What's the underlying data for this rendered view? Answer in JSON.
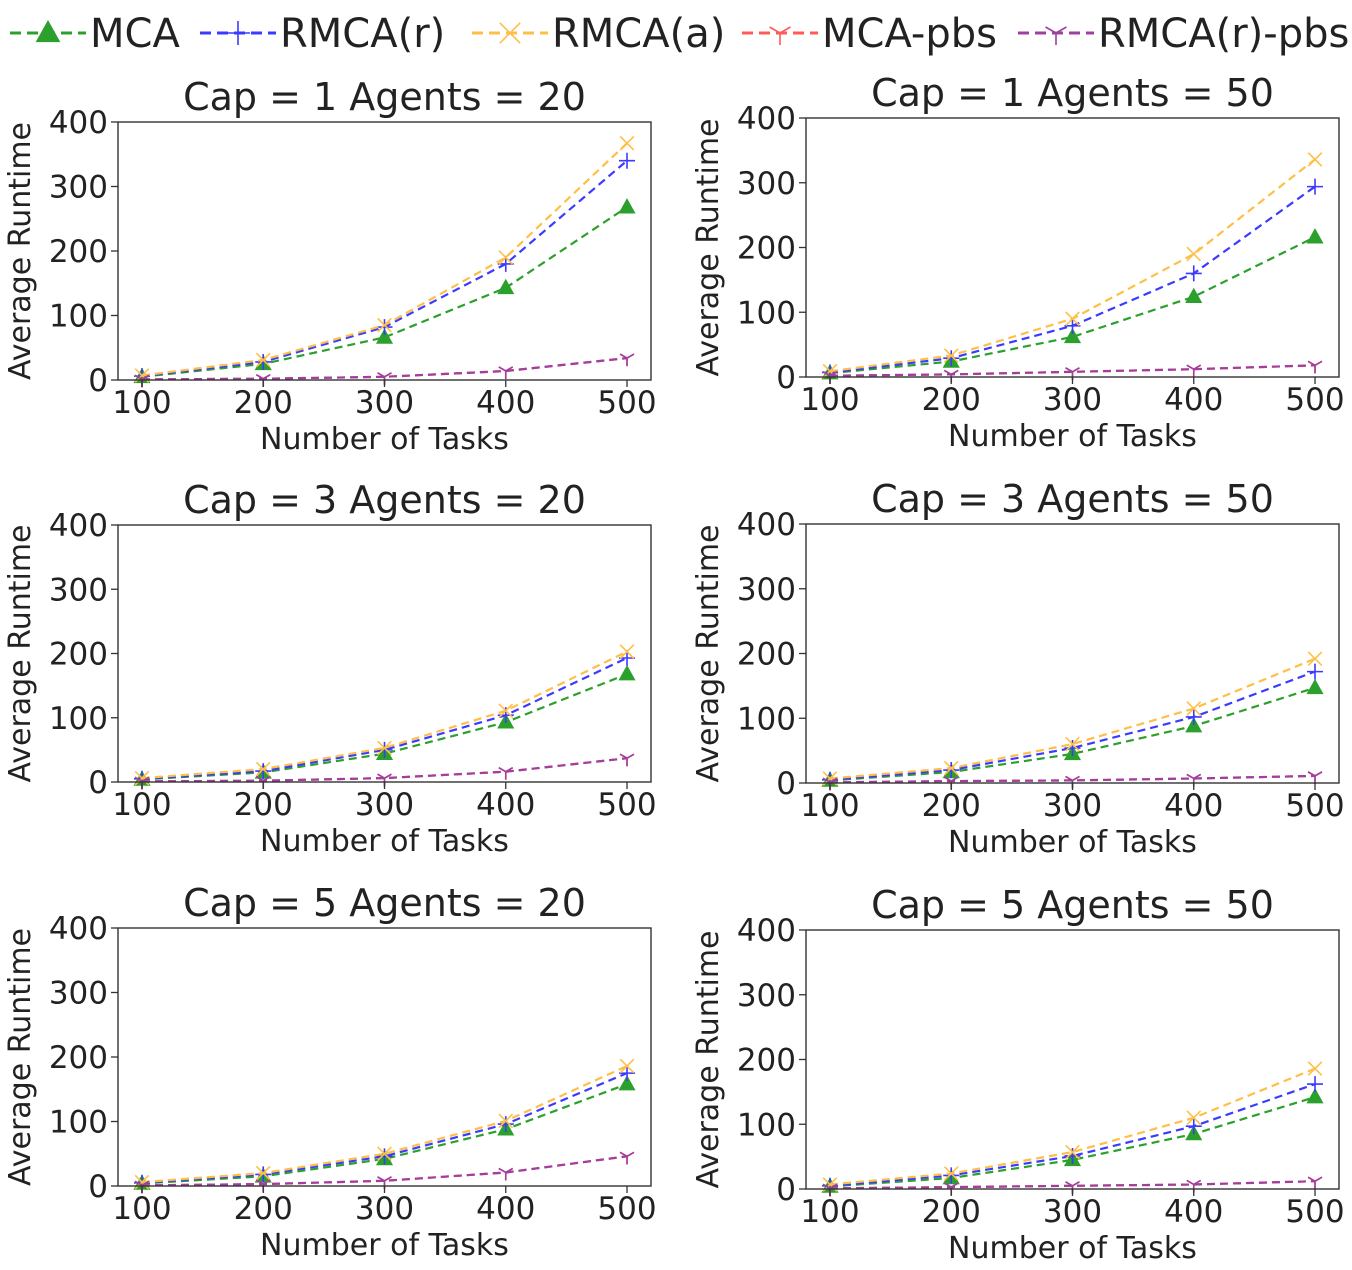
{
  "legend": {
    "placement": "top",
    "items": [
      {
        "label": "MCA",
        "color": "#2ca02c",
        "marker": "triangle"
      },
      {
        "label": "RMCA(r)",
        "color": "#3b3bff",
        "marker": "plus"
      },
      {
        "label": "RMCA(a)",
        "color": "#ffbf47",
        "marker": "x"
      },
      {
        "label": "MCA-pbs",
        "color": "#ff5a5a",
        "marker": "tri"
      },
      {
        "label": "RMCA(r)-pbs",
        "color": "#a03fa0",
        "marker": "tri"
      }
    ]
  },
  "chart_data": [
    {
      "type": "line",
      "title": "Cap = 1 Agents = 20",
      "xlabel": "Number of Tasks",
      "ylabel": "Average Runtime",
      "x": [
        100,
        200,
        300,
        400,
        500
      ],
      "ylim": [
        0,
        400
      ],
      "yticks": [
        0,
        100,
        200,
        300,
        400
      ],
      "grid": false,
      "series": [
        {
          "name": "MCA",
          "values": [
            5,
            25,
            66,
            143,
            268
          ]
        },
        {
          "name": "RMCA(r)",
          "values": [
            6,
            28,
            82,
            180,
            340
          ]
        },
        {
          "name": "RMCA(a)",
          "values": [
            7,
            31,
            85,
            190,
            367
          ]
        },
        {
          "name": "MCA-pbs",
          "values": [
            1,
            2,
            5,
            14,
            34
          ]
        },
        {
          "name": "RMCA(r)-pbs",
          "values": [
            1,
            2,
            5,
            14,
            34
          ]
        }
      ]
    },
    {
      "type": "line",
      "title": "Cap = 1 Agents = 50",
      "xlabel": "Number of Tasks",
      "ylabel": "Average Runtime",
      "x": [
        100,
        200,
        300,
        400,
        500
      ],
      "ylim": [
        0,
        400
      ],
      "yticks": [
        0,
        100,
        200,
        300,
        400
      ],
      "grid": false,
      "series": [
        {
          "name": "MCA",
          "values": [
            6,
            24,
            62,
            124,
            216
          ]
        },
        {
          "name": "RMCA(r)",
          "values": [
            7,
            29,
            79,
            160,
            294
          ]
        },
        {
          "name": "RMCA(a)",
          "values": [
            9,
            33,
            90,
            190,
            336
          ]
        },
        {
          "name": "MCA-pbs",
          "values": [
            2,
            4,
            8,
            12,
            18
          ]
        },
        {
          "name": "RMCA(r)-pbs",
          "values": [
            2,
            4,
            8,
            12,
            18
          ]
        }
      ]
    },
    {
      "type": "line",
      "title": "Cap = 3 Agents = 20",
      "xlabel": "Number of Tasks",
      "ylabel": "Average Runtime",
      "x": [
        100,
        200,
        300,
        400,
        500
      ],
      "ylim": [
        0,
        400
      ],
      "yticks": [
        0,
        100,
        200,
        300,
        400
      ],
      "grid": false,
      "series": [
        {
          "name": "MCA",
          "values": [
            4,
            15,
            44,
            93,
            168
          ]
        },
        {
          "name": "RMCA(r)",
          "values": [
            5,
            17,
            50,
            104,
            193
          ]
        },
        {
          "name": "RMCA(a)",
          "values": [
            6,
            20,
            53,
            111,
            203
          ]
        },
        {
          "name": "MCA-pbs",
          "values": [
            1,
            2,
            6,
            16,
            37
          ]
        },
        {
          "name": "RMCA(r)-pbs",
          "values": [
            1,
            2,
            6,
            16,
            37
          ]
        }
      ]
    },
    {
      "type": "line",
      "title": "Cap = 3 Agents = 50",
      "xlabel": "Number of Tasks",
      "ylabel": "Average Runtime",
      "x": [
        100,
        200,
        300,
        400,
        500
      ],
      "ylim": [
        0,
        400
      ],
      "yticks": [
        0,
        100,
        200,
        300,
        400
      ],
      "grid": false,
      "series": [
        {
          "name": "MCA",
          "values": [
            4,
            17,
            45,
            88,
            147
          ]
        },
        {
          "name": "RMCA(r)",
          "values": [
            5,
            20,
            54,
            102,
            172
          ]
        },
        {
          "name": "RMCA(a)",
          "values": [
            7,
            23,
            60,
            115,
            192
          ]
        },
        {
          "name": "MCA-pbs",
          "values": [
            1,
            3,
            4,
            7,
            11
          ]
        },
        {
          "name": "RMCA(r)-pbs",
          "values": [
            1,
            3,
            4,
            7,
            11
          ]
        }
      ]
    },
    {
      "type": "line",
      "title": "Cap = 5 Agents = 20",
      "xlabel": "Number of Tasks",
      "ylabel": "Average Runtime",
      "x": [
        100,
        200,
        300,
        400,
        500
      ],
      "ylim": [
        0,
        400
      ],
      "yticks": [
        0,
        100,
        200,
        300,
        400
      ],
      "grid": false,
      "series": [
        {
          "name": "MCA",
          "values": [
            4,
            15,
            42,
            88,
            158
          ]
        },
        {
          "name": "RMCA(r)",
          "values": [
            5,
            18,
            46,
            96,
            175
          ]
        },
        {
          "name": "RMCA(a)",
          "values": [
            6,
            20,
            50,
            101,
            186
          ]
        },
        {
          "name": "MCA-pbs",
          "values": [
            1,
            3,
            8,
            21,
            46
          ]
        },
        {
          "name": "RMCA(r)-pbs",
          "values": [
            1,
            3,
            8,
            21,
            46
          ]
        }
      ]
    },
    {
      "type": "line",
      "title": "Cap = 5 Agents = 50",
      "xlabel": "Number of Tasks",
      "ylabel": "Average Runtime",
      "x": [
        100,
        200,
        300,
        400,
        500
      ],
      "ylim": [
        0,
        400
      ],
      "yticks": [
        0,
        100,
        200,
        300,
        400
      ],
      "grid": false,
      "series": [
        {
          "name": "MCA",
          "values": [
            4,
            17,
            45,
            85,
            142
          ]
        },
        {
          "name": "RMCA(r)",
          "values": [
            5,
            21,
            51,
            97,
            162
          ]
        },
        {
          "name": "RMCA(a)",
          "values": [
            7,
            24,
            57,
            110,
            186
          ]
        },
        {
          "name": "MCA-pbs",
          "values": [
            1,
            3,
            5,
            7,
            12
          ]
        },
        {
          "name": "RMCA(r)-pbs",
          "values": [
            1,
            3,
            5,
            7,
            12
          ]
        }
      ]
    }
  ]
}
